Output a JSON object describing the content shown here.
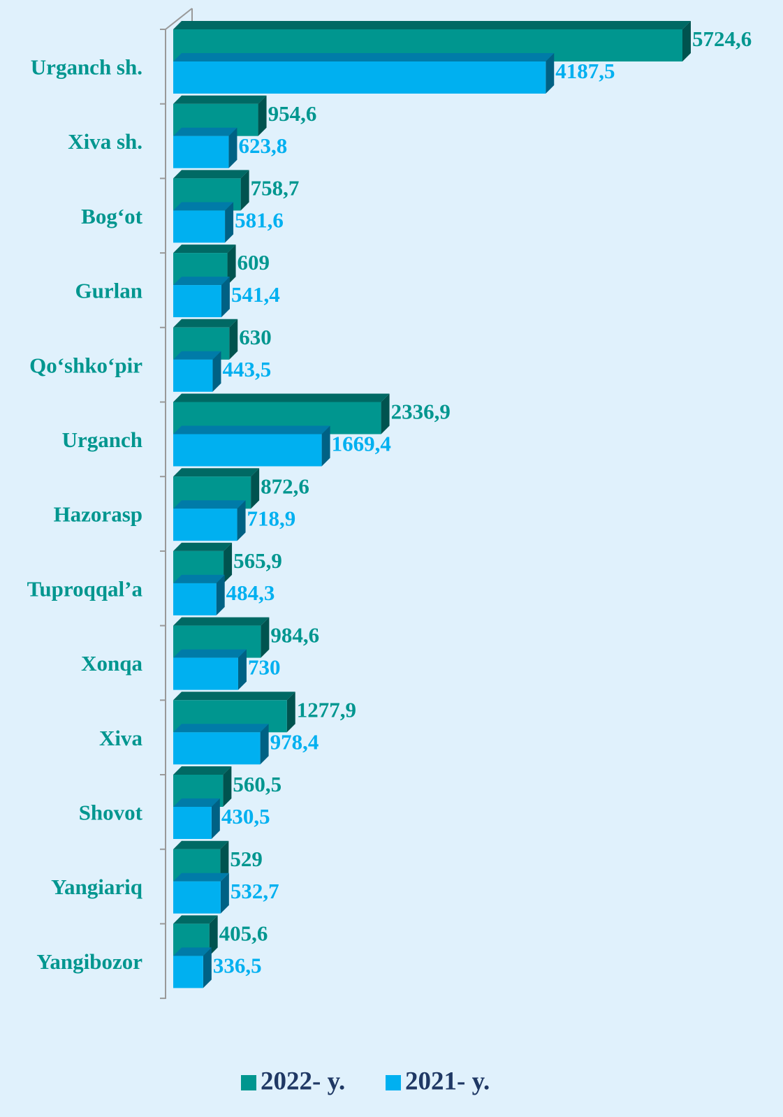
{
  "chart_data": {
    "type": "bar",
    "orientation": "horizontal",
    "categories": [
      "Urganch sh.",
      "Xiva sh.",
      "Bog‘ot",
      "Gurlan",
      "Qo‘shko‘pir",
      "Urganch",
      "Hazorasp",
      "Tuproqqal’a",
      "Xonqa",
      "Xiva",
      "Shovot",
      "Yangiariq",
      "Yangibozor"
    ],
    "series": [
      {
        "name": "2022- y.",
        "color": "#00968f",
        "values": [
          5724.6,
          954.6,
          758.7,
          609,
          630,
          2336.9,
          872.6,
          565.9,
          984.6,
          1277.9,
          560.5,
          529,
          405.6
        ],
        "value_labels": [
          "5724,6",
          "954,6",
          "758,7",
          "609",
          "630",
          "2336,9",
          "872,6",
          "565,9",
          "984,6",
          "1277,9",
          "560,5",
          "529",
          "405,6"
        ]
      },
      {
        "name": "2021- y.",
        "color": "#00b0f0",
        "values": [
          4187.5,
          623.8,
          581.6,
          541.4,
          443.5,
          1669.4,
          718.9,
          484.3,
          730,
          978.4,
          430.5,
          532.7,
          336.5
        ],
        "value_labels": [
          "4187,5",
          "623,8",
          "581,6",
          "541,4",
          "443,5",
          "1669,4",
          "718,9",
          "484,3",
          "730",
          "978,4",
          "430,5",
          "532,7",
          "336,5"
        ]
      }
    ],
    "legend": "bottom"
  }
}
